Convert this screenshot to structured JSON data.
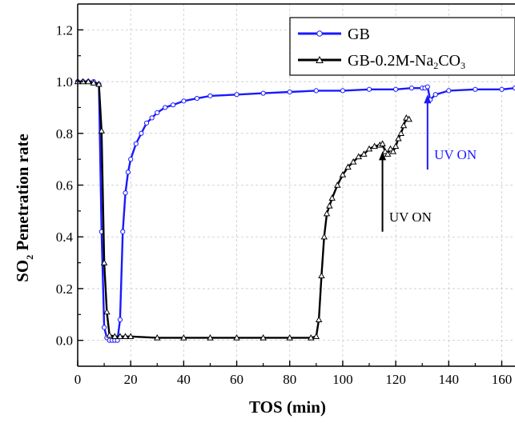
{
  "chart_data": {
    "type": "line",
    "title": "",
    "xlabel": "TOS (min)",
    "ylabel_main": "SO",
    "ylabel_sub": "2",
    "ylabel_rest": " Penetration rate",
    "xlim": [
      0,
      165
    ],
    "ylim": [
      -0.1,
      1.3
    ],
    "xticks": [
      0,
      20,
      40,
      60,
      80,
      100,
      120,
      140,
      160
    ],
    "yticks": [
      0.0,
      0.2,
      0.4,
      0.6,
      0.8,
      1.0,
      1.2
    ],
    "xtick_labels": [
      "0",
      "20",
      "40",
      "60",
      "80",
      "100",
      "120",
      "140",
      "160"
    ],
    "ytick_labels": [
      "0.0",
      "0.2",
      "0.4",
      "0.6",
      "0.8",
      "1.0",
      "1.2"
    ],
    "grid": true,
    "legend_position": "top-right",
    "series": [
      {
        "name": "GB",
        "color": "#1a1aff",
        "marker": "circle",
        "x": [
          0,
          2,
          4,
          6,
          8,
          9,
          10,
          11,
          12,
          13,
          14,
          15,
          16,
          17,
          18,
          19,
          20,
          22,
          24,
          26,
          28,
          30,
          33,
          36,
          40,
          45,
          50,
          60,
          70,
          80,
          90,
          100,
          110,
          120,
          126,
          130,
          131,
          132,
          133,
          135,
          140,
          150,
          160,
          165
        ],
        "y": [
          1.0,
          1.0,
          1.0,
          1.0,
          0.99,
          0.42,
          0.05,
          0.01,
          0.0,
          0.0,
          0.0,
          0.0,
          0.08,
          0.42,
          0.57,
          0.65,
          0.7,
          0.76,
          0.8,
          0.84,
          0.86,
          0.88,
          0.9,
          0.91,
          0.925,
          0.935,
          0.945,
          0.95,
          0.955,
          0.96,
          0.965,
          0.965,
          0.97,
          0.97,
          0.975,
          0.975,
          0.975,
          0.98,
          0.93,
          0.95,
          0.965,
          0.97,
          0.97,
          0.975
        ]
      },
      {
        "name": "GB-0.2M-Na2CO3",
        "color": "#000000",
        "marker": "triangle",
        "x": [
          0,
          2,
          4,
          6,
          8,
          9,
          10,
          11,
          12,
          14,
          16,
          18,
          20,
          30,
          40,
          50,
          60,
          70,
          80,
          88,
          90,
          91,
          92,
          93,
          94,
          95,
          96,
          98,
          100,
          102,
          104,
          106,
          108,
          110,
          112,
          114,
          115,
          116,
          117,
          118,
          119,
          120,
          121,
          122,
          123,
          124,
          125
        ],
        "y": [
          1.0,
          1.0,
          1.0,
          0.995,
          0.99,
          0.81,
          0.3,
          0.11,
          0.02,
          0.015,
          0.015,
          0.015,
          0.015,
          0.01,
          0.01,
          0.01,
          0.01,
          0.01,
          0.01,
          0.01,
          0.015,
          0.08,
          0.25,
          0.4,
          0.49,
          0.52,
          0.55,
          0.6,
          0.64,
          0.67,
          0.69,
          0.71,
          0.72,
          0.74,
          0.75,
          0.755,
          0.76,
          0.73,
          0.72,
          0.74,
          0.73,
          0.75,
          0.78,
          0.8,
          0.83,
          0.86,
          0.855
        ]
      }
    ],
    "annotations": [
      {
        "text": "UV ON",
        "x_arrow": 115,
        "y_tail": 0.42,
        "y_head": 0.73,
        "text_x": 117.5,
        "text_y": 0.46,
        "color": "#000000"
      },
      {
        "text": "UV ON",
        "x_arrow": 132,
        "y_tail": 0.66,
        "y_head": 0.95,
        "text_x": 134.5,
        "text_y": 0.7,
        "color": "#1a1aff"
      }
    ],
    "legend": {
      "entries": [
        {
          "label_main": "GB",
          "label_sub": "",
          "label_tail": "",
          "series_index": 0
        },
        {
          "label_main": "GB-0.2M-Na",
          "label_sub": "2",
          "label_mid": "CO",
          "label_sub2": "3",
          "series_index": 1
        }
      ]
    }
  }
}
